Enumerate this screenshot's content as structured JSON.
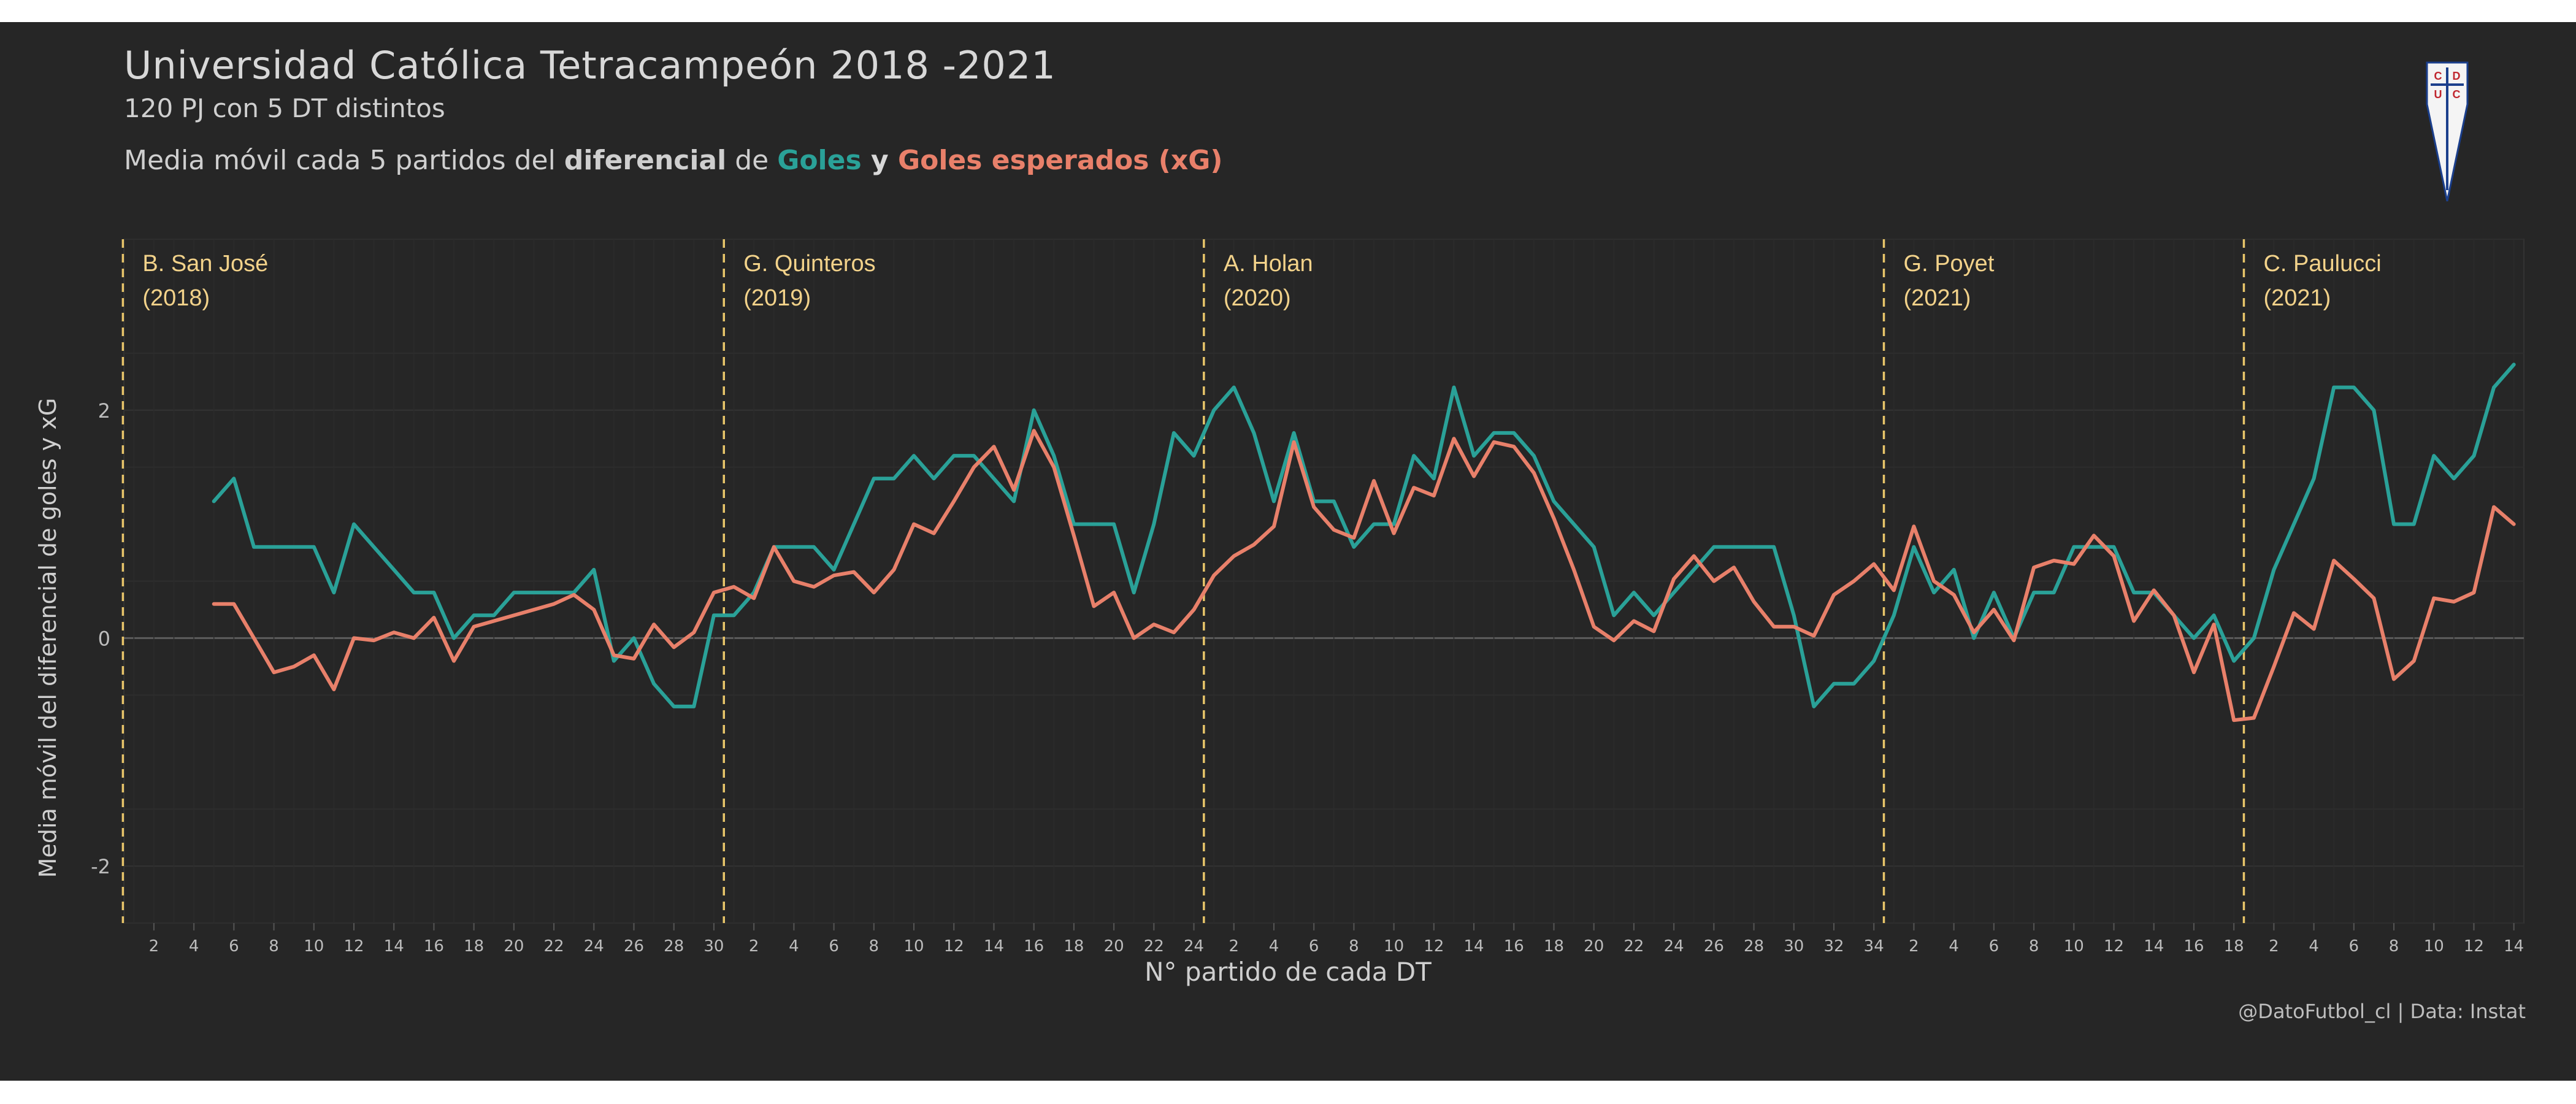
{
  "header": {
    "title": "Universidad  Católica  Tetracampeón  2018  -2021",
    "subtitle": "120 PJ con 5 DT distintos",
    "legend_prefix": "Media móvil cada 5 partidos del ",
    "legend_bold": "diferencial",
    "legend_de": " de ",
    "legend_goles": "Goles",
    "legend_y": " y ",
    "legend_xg": "Goles esperados (xG)"
  },
  "caption": "@DatoFutbol_cl  |  Data: Instat",
  "colors": {
    "goles": "#2aa198",
    "xg": "#e8806a",
    "dt_line": "#e8c56a",
    "dt_text": "#f2d28a"
  },
  "chart_data": {
    "type": "line",
    "xlabel": "N° partido de cada DT",
    "ylabel": "Media móvil del diferencial de goles y xG",
    "ylim": [
      -2.5,
      3.5
    ],
    "yticks": [
      -2,
      0,
      2
    ],
    "total_matches": 120,
    "grid": true,
    "coaches": [
      {
        "name": "B. San José",
        "year": "(2018)",
        "matches": 30,
        "ticks": [
          "2",
          "4",
          "6",
          "8",
          "10",
          "12",
          "14",
          "16",
          "18",
          "20",
          "22",
          "24",
          "26",
          "28",
          "30"
        ]
      },
      {
        "name": "G. Quinteros",
        "year": "(2019)",
        "matches": 24,
        "ticks": [
          "2",
          "4",
          "6",
          "8",
          "10",
          "12",
          "14",
          "16",
          "18",
          "20",
          "22",
          "24"
        ]
      },
      {
        "name": "A. Holan",
        "year": "(2020)",
        "matches": 34,
        "ticks": [
          "2",
          "4",
          "6",
          "8",
          "10",
          "12",
          "14",
          "16",
          "18",
          "20",
          "22",
          "24",
          "26",
          "28",
          "30",
          "32",
          "34"
        ]
      },
      {
        "name": "G. Poyet",
        "year": "(2021)",
        "matches": 18,
        "ticks": [
          "2",
          "4",
          "6",
          "8",
          "10",
          "12",
          "14",
          "16",
          "18"
        ]
      },
      {
        "name": "C. Paulucci",
        "year": "(2021)",
        "matches": 14,
        "ticks": [
          "2",
          "4",
          "6",
          "8",
          "10",
          "12",
          "14"
        ]
      }
    ],
    "series": [
      {
        "key": "goles",
        "name": "Goles",
        "start": 5,
        "values": [
          1.2,
          1.4,
          0.8,
          0.8,
          0.8,
          0.8,
          0.4,
          1.0,
          0.8,
          0.6,
          0.4,
          0.4,
          0.0,
          0.2,
          0.2,
          0.4,
          0.4,
          0.4,
          0.4,
          0.6,
          -0.2,
          0.0,
          -0.4,
          -0.6,
          -0.6,
          0.2,
          0.2,
          0.4,
          0.8,
          0.8,
          0.8,
          0.6,
          1.0,
          1.4,
          1.4,
          1.6,
          1.4,
          1.6,
          1.6,
          1.4,
          1.2,
          2.0,
          1.6,
          1.0,
          1.0,
          1.0,
          0.4,
          1.0,
          1.8,
          1.6,
          2.0,
          2.2,
          1.8,
          1.2,
          1.8,
          1.2,
          1.2,
          0.8,
          1.0,
          1.0,
          1.6,
          1.4,
          2.2,
          1.6,
          1.8,
          1.8,
          1.6,
          1.2,
          1.0,
          0.8,
          0.2,
          0.4,
          0.2,
          0.4,
          0.6,
          0.8,
          0.8,
          0.8,
          0.8,
          0.2,
          -0.6,
          -0.4,
          -0.4,
          -0.2,
          0.2,
          0.8,
          0.4,
          0.6,
          0.0,
          0.4,
          0.0,
          0.4,
          0.4,
          0.8,
          0.8,
          0.8,
          0.4,
          0.4,
          0.2,
          0.0,
          0.2,
          -0.2,
          0.0,
          0.6,
          1.0,
          1.4,
          2.2,
          2.2,
          2.0,
          1.0,
          1.0,
          1.6,
          1.4,
          1.6,
          2.2,
          2.4
        ]
      },
      {
        "key": "xg",
        "name": "Goles esperados (xG)",
        "start": 5,
        "values": [
          0.3,
          0.3,
          0.0,
          -0.3,
          -0.25,
          -0.15,
          -0.45,
          0.0,
          -0.02,
          0.05,
          0.0,
          0.18,
          -0.2,
          0.1,
          0.15,
          0.2,
          0.25,
          0.3,
          0.38,
          0.25,
          -0.15,
          -0.18,
          0.12,
          -0.08,
          0.05,
          0.4,
          0.45,
          0.35,
          0.8,
          0.5,
          0.45,
          0.55,
          0.58,
          0.4,
          0.6,
          1.0,
          0.92,
          1.2,
          1.5,
          1.68,
          1.3,
          1.82,
          1.5,
          0.9,
          0.28,
          0.4,
          0.0,
          0.12,
          0.05,
          0.25,
          0.55,
          0.72,
          0.82,
          0.98,
          1.72,
          1.15,
          0.95,
          0.88,
          1.38,
          0.92,
          1.32,
          1.25,
          1.75,
          1.42,
          1.72,
          1.68,
          1.45,
          1.05,
          0.6,
          0.1,
          -0.02,
          0.15,
          0.06,
          0.52,
          0.72,
          0.5,
          0.62,
          0.32,
          0.1,
          0.1,
          0.02,
          0.38,
          0.5,
          0.65,
          0.42,
          0.98,
          0.5,
          0.38,
          0.05,
          0.25,
          -0.02,
          0.62,
          0.68,
          0.65,
          0.9,
          0.72,
          0.15,
          0.42,
          0.2,
          -0.3,
          0.12,
          -0.72,
          -0.7,
          -0.25,
          0.22,
          0.08,
          0.68,
          0.52,
          0.35,
          -0.36,
          -0.2,
          0.35,
          0.32,
          0.4,
          1.15,
          1.0
        ]
      }
    ]
  }
}
